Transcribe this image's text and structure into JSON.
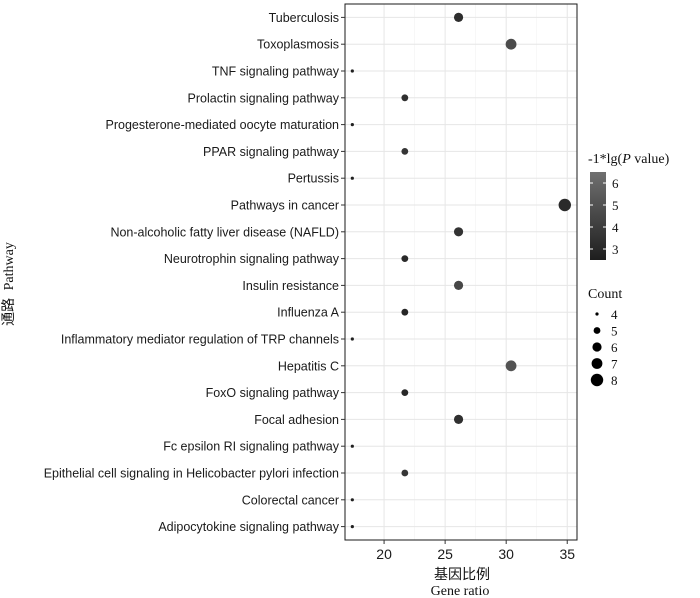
{
  "chart_data": {
    "type": "scatter",
    "title": "",
    "xlabel_cn": "基因比例",
    "xlabel_en": "Gene ratio",
    "ylabel_cn": "通路",
    "ylabel_en": "Pathway",
    "xlim": [
      16.8,
      35.8
    ],
    "xticks": [
      20,
      25,
      30,
      35
    ],
    "grid": true,
    "categories": [
      "Tuberculosis",
      "Toxoplasmosis",
      "TNF signaling pathway",
      "Prolactin signaling pathway",
      "Progesterone-mediated oocyte maturation",
      "PPAR signaling pathway",
      "Pertussis",
      "Pathways in cancer",
      "Non-alcoholic fatty liver disease (NAFLD)",
      "Neurotrophin signaling pathway",
      "Insulin resistance",
      "Influenza A",
      "Inflammatory mediator regulation of TRP channels",
      "Hepatitis C",
      "FoxO signaling pathway",
      "Focal adhesion",
      "Fc epsilon RI signaling pathway",
      "Epithelial cell signaling in Helicobacter pylori infection",
      "Colorectal cancer",
      "Adipocytokine signaling pathway"
    ],
    "points": [
      {
        "pathway": "Tuberculosis",
        "gene_ratio": 26.1,
        "count": 6,
        "neg_log10_p": 3.3
      },
      {
        "pathway": "Toxoplasmosis",
        "gene_ratio": 30.4,
        "count": 7,
        "neg_log10_p": 4.7
      },
      {
        "pathway": "TNF signaling pathway",
        "gene_ratio": 17.4,
        "count": 4,
        "neg_log10_p": 2.6
      },
      {
        "pathway": "Prolactin signaling pathway",
        "gene_ratio": 21.7,
        "count": 5,
        "neg_log10_p": 3.4
      },
      {
        "pathway": "Progesterone-mediated oocyte maturation",
        "gene_ratio": 17.4,
        "count": 4,
        "neg_log10_p": 2.6
      },
      {
        "pathway": "PPAR signaling pathway",
        "gene_ratio": 21.7,
        "count": 5,
        "neg_log10_p": 3.6
      },
      {
        "pathway": "Pertussis",
        "gene_ratio": 17.4,
        "count": 4,
        "neg_log10_p": 2.6
      },
      {
        "pathway": "Pathways in cancer",
        "gene_ratio": 34.8,
        "count": 8,
        "neg_log10_p": 3.1
      },
      {
        "pathway": "Non-alcoholic fatty liver disease (NAFLD)",
        "gene_ratio": 26.1,
        "count": 6,
        "neg_log10_p": 3.5
      },
      {
        "pathway": "Neurotrophin signaling pathway",
        "gene_ratio": 21.7,
        "count": 5,
        "neg_log10_p": 3.1
      },
      {
        "pathway": "Insulin resistance",
        "gene_ratio": 26.1,
        "count": 6,
        "neg_log10_p": 4.5
      },
      {
        "pathway": "Influenza A",
        "gene_ratio": 21.7,
        "count": 5,
        "neg_log10_p": 2.9
      },
      {
        "pathway": "Inflammatory mediator regulation of TRP channels",
        "gene_ratio": 17.4,
        "count": 4,
        "neg_log10_p": 2.6
      },
      {
        "pathway": "Hepatitis C",
        "gene_ratio": 30.4,
        "count": 7,
        "neg_log10_p": 5.1
      },
      {
        "pathway": "FoxO signaling pathway",
        "gene_ratio": 21.7,
        "count": 5,
        "neg_log10_p": 3.0
      },
      {
        "pathway": "Focal adhesion",
        "gene_ratio": 26.1,
        "count": 6,
        "neg_log10_p": 3.4
      },
      {
        "pathway": "Fc epsilon RI signaling pathway",
        "gene_ratio": 17.4,
        "count": 4,
        "neg_log10_p": 2.6
      },
      {
        "pathway": "Epithelial cell signaling in Helicobacter pylori infection",
        "gene_ratio": 21.7,
        "count": 5,
        "neg_log10_p": 3.6
      },
      {
        "pathway": "Colorectal cancer",
        "gene_ratio": 17.4,
        "count": 4,
        "neg_log10_p": 2.6
      },
      {
        "pathway": "Adipocytokine signaling pathway",
        "gene_ratio": 17.4,
        "count": 4,
        "neg_log10_p": 2.6
      }
    ],
    "color_legend": {
      "title_prefix": "-1*lg(",
      "title_italic": "P",
      "title_suffix": " value)",
      "min": 2.5,
      "max": 6.5,
      "ticks": [
        3,
        4,
        5,
        6
      ],
      "low_color": "#1e1e1e",
      "high_color": "#707070"
    },
    "size_legend": {
      "title": "Count",
      "values": [
        4,
        5,
        6,
        7,
        8
      ]
    },
    "colors": {
      "panel_border": "#1a1a1a",
      "grid": "#e6e6e6",
      "axis": "#333333"
    }
  }
}
